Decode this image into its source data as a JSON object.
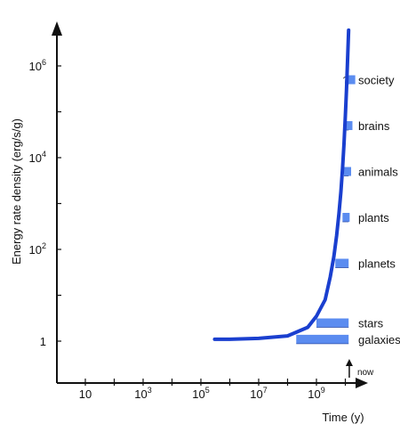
{
  "chart_data": {
    "type": "line",
    "title": "",
    "xlabel": "Time (y)",
    "ylabel": "Energy rate density (erg/s/g)",
    "x_scale": "log",
    "y_scale": "log",
    "x_ticks": [
      {
        "value": 10,
        "base": "10",
        "exp": ""
      },
      {
        "value": 1000,
        "base": "10",
        "exp": "3"
      },
      {
        "value": 100000,
        "base": "10",
        "exp": "5"
      },
      {
        "value": 10000000,
        "base": "10",
        "exp": "7"
      },
      {
        "value": 1000000000,
        "base": "10",
        "exp": "9"
      }
    ],
    "y_ticks": [
      {
        "value": 1,
        "base": "1",
        "exp": ""
      },
      {
        "value": 100,
        "base": "10",
        "exp": "2"
      },
      {
        "value": 10000,
        "base": "10",
        "exp": "4"
      },
      {
        "value": 1000000,
        "base": "10",
        "exp": "6"
      }
    ],
    "xlim": [
      1,
      20000000000
    ],
    "ylim": [
      0.2,
      12000000
    ],
    "series": [
      {
        "color": "#1a3fcf",
        "x": [
          300000,
          1000000,
          10000000,
          100000000,
          500000000,
          1000000000,
          2000000000,
          3000000000,
          4000000000,
          5000000000,
          6000000000,
          7000000000,
          8000000000,
          9000000000,
          10000000000,
          11000000000,
          12000000000,
          13000000000
        ],
        "y": [
          1.1,
          1.1,
          1.15,
          1.3,
          2.0,
          3.5,
          8,
          25,
          70,
          200,
          600,
          1800,
          6000,
          20000,
          80000,
          300000,
          1500000,
          6000000
        ]
      }
    ],
    "bands": [
      {
        "label": "galaxies",
        "y": 1.1,
        "start": 200000000,
        "end": 13000000000,
        "marker": ""
      },
      {
        "label": "stars",
        "y": 2.5,
        "start": 1000000000,
        "end": 13000000000,
        "marker": ""
      },
      {
        "label": "planets",
        "y": 50,
        "start": 4500000000,
        "end": 13000000000,
        "marker": ""
      },
      {
        "label": "plants",
        "y": 500,
        "start": 8000000000,
        "end": 13000000000,
        "marker": ""
      },
      {
        "label": "animals",
        "y": 5000,
        "start": 9000000000,
        "end": 13000000000,
        "marker": ""
      },
      {
        "label": "brains",
        "y": 50000,
        "start": 10000000000,
        "end": 13000000000,
        "marker": ""
      },
      {
        "label": "society",
        "y": 500000,
        "start": 12500000000,
        "end": 13000000000,
        "marker": "?"
      }
    ],
    "annotations": [
      {
        "text": "now",
        "x": 13700000000
      }
    ],
    "band_color": "#5b8cf0",
    "axis_color": "#111111",
    "grid": false,
    "legend": "none"
  }
}
